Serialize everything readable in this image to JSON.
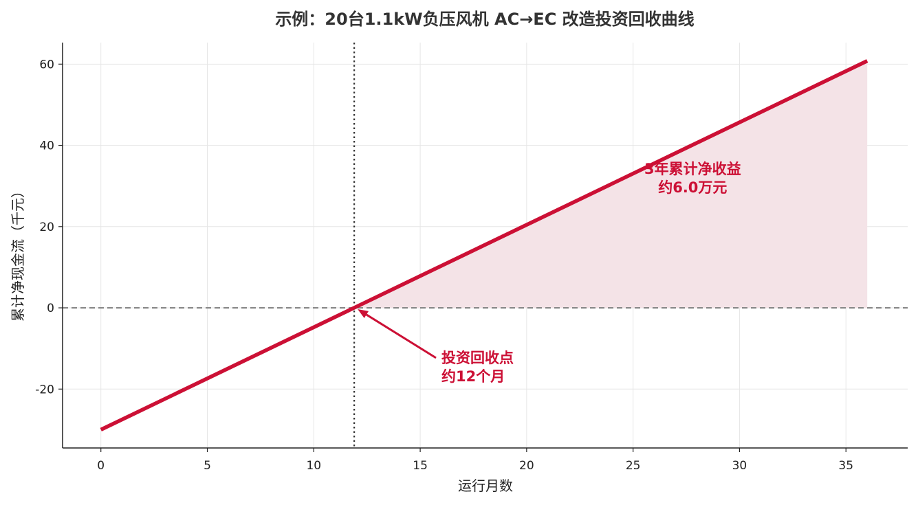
{
  "chart_data": {
    "type": "line",
    "title": "示例：20台1.1kW负压风机 AC→EC 改造投资回收曲线",
    "xlabel": "运行月数",
    "ylabel": "累计净现金流（千元）",
    "xlim": [
      -1.8,
      37.9
    ],
    "ylim": [
      -34.5,
      65.3
    ],
    "xticks": [
      0,
      5,
      10,
      15,
      20,
      25,
      30,
      35
    ],
    "yticks": [
      -20,
      0,
      20,
      40,
      60
    ],
    "ytick_labels": [
      "-20",
      "0",
      "20",
      "40",
      "60"
    ],
    "grid": true,
    "series": [
      {
        "x": [
          0,
          36
        ],
        "y": [
          -30.0,
          60.8
        ]
      }
    ],
    "payback_x": 11.9,
    "fill": {
      "from_x": 11.9,
      "to_x": 36
    },
    "annotations": {
      "payback_line1": "投资回收点",
      "payback_line2": "约12个月",
      "payback_text_pos": [
        16.0,
        -13.5
      ],
      "gain_line1": "3年累计净收益",
      "gain_line2": "约6.0万元",
      "gain_text_pos": [
        27.8,
        33.0
      ]
    },
    "colors": {
      "line": "#cc1035",
      "fill": "#f4e3e7",
      "zero_line": "#888888",
      "payback_line": "#333333",
      "grid": "#e6e6e6",
      "axis": "#222222",
      "title": "#333333"
    }
  }
}
